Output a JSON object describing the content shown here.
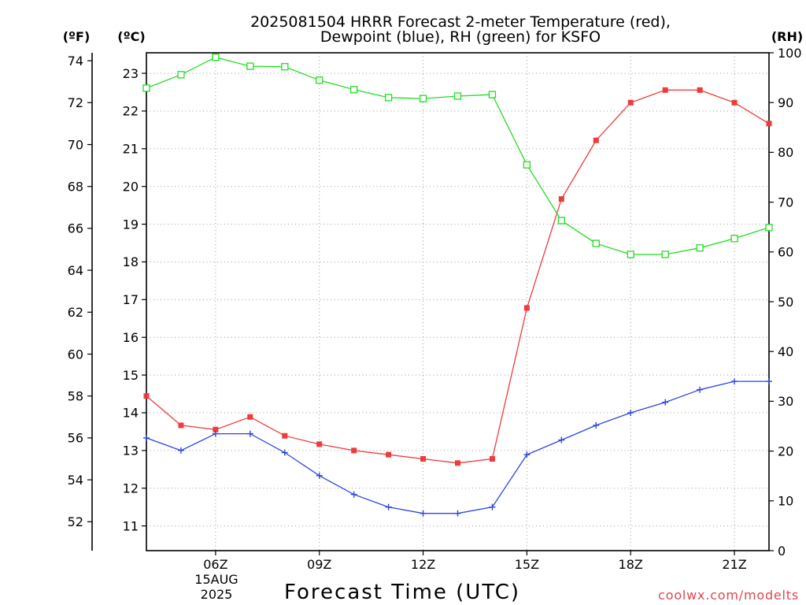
{
  "chart_data": {
    "type": "line",
    "title_lines": [
      "2025081504 HRRR Forecast 2-meter Temperature (red),",
      "Dewpoint (blue), RH (green) for KSFO"
    ],
    "xlabel": "Forecast Time (UTC)",
    "x": [
      "04Z",
      "05Z",
      "06Z",
      "07Z",
      "08Z",
      "09Z",
      "10Z",
      "11Z",
      "12Z",
      "13Z",
      "14Z",
      "15Z",
      "16Z",
      "17Z",
      "18Z",
      "19Z",
      "20Z",
      "21Z",
      "22Z"
    ],
    "xlim": [
      "04Z",
      "22Z"
    ],
    "x_ticks": [
      "06Z",
      "09Z",
      "12Z",
      "15Z",
      "18Z",
      "21Z"
    ],
    "x_date_label": [
      "15AUG",
      "2025"
    ],
    "grid": true,
    "y_axes": {
      "fahrenheit": {
        "label": "(ºF)",
        "ticks": [
          52,
          54,
          56,
          58,
          60,
          62,
          64,
          66,
          68,
          70,
          72,
          74
        ],
        "ylim": [
          50.62,
          74.38
        ]
      },
      "celsius": {
        "label": "(ºC)",
        "ticks": [
          11,
          12,
          13,
          14,
          15,
          16,
          17,
          18,
          19,
          20,
          21,
          22,
          23
        ],
        "ylim": [
          10.34,
          23.54
        ]
      },
      "rh": {
        "label": "(RH)",
        "ticks": [
          0,
          10,
          20,
          30,
          40,
          50,
          60,
          70,
          80,
          90,
          100
        ],
        "ylim": [
          0,
          100
        ]
      }
    },
    "series": [
      {
        "name": "Temperature",
        "color": "#ee3b3b",
        "marker": "filled-square",
        "y_axis": "left",
        "values": [
          58.0,
          56.6,
          56.4,
          57.0,
          56.1,
          55.7,
          55.4,
          55.2,
          55.0,
          54.8,
          55.0,
          62.2,
          67.4,
          70.2,
          72.0,
          72.6,
          72.6,
          72.0,
          71.0
        ]
      },
      {
        "name": "Dewpoint",
        "color": "#2c46e0",
        "marker": "plus",
        "y_axis": "left",
        "values": [
          56.0,
          55.4,
          56.2,
          56.2,
          55.3,
          54.2,
          53.3,
          52.7,
          52.4,
          52.4,
          52.7,
          55.2,
          55.9,
          56.6,
          57.2,
          57.7,
          58.3,
          58.7,
          58.7
        ]
      },
      {
        "name": "RH",
        "color": "#22dd22",
        "marker": "open-square",
        "y_axis": "right",
        "values": [
          92.9,
          95.6,
          99.1,
          97.3,
          97.2,
          94.5,
          92.6,
          91.0,
          90.8,
          91.3,
          91.6,
          77.5,
          66.3,
          61.7,
          59.5,
          59.5,
          60.8,
          62.7,
          64.9
        ]
      }
    ]
  },
  "credit": {
    "text": "coolwx.com/modelts",
    "color": "#e0464e"
  }
}
